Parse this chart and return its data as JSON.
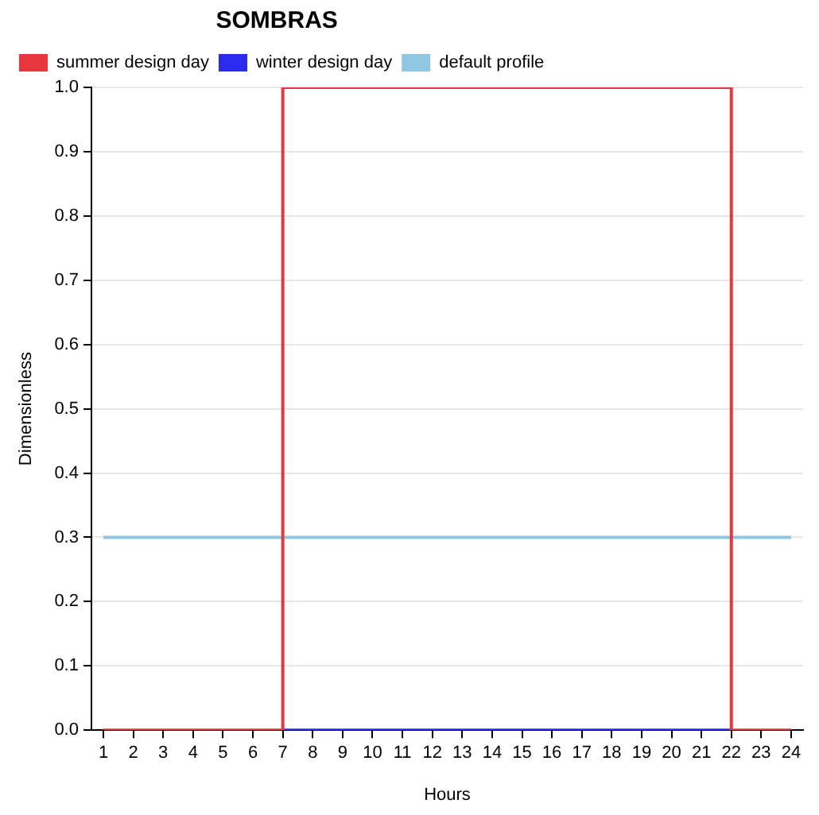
{
  "chart_data": {
    "type": "step",
    "legend_title": "SOMBRAS",
    "xlabel": "Hours",
    "ylabel": "Dimensionless",
    "x": [
      1,
      2,
      3,
      4,
      5,
      6,
      7,
      8,
      9,
      10,
      11,
      12,
      13,
      14,
      15,
      16,
      17,
      18,
      19,
      20,
      21,
      22,
      23,
      24
    ],
    "series": [
      {
        "name": "summer design day",
        "color": "#e8373c",
        "values": [
          0,
          0,
          0,
          0,
          0,
          0,
          1,
          1,
          1,
          1,
          1,
          1,
          1,
          1,
          1,
          1,
          1,
          1,
          1,
          1,
          1,
          0,
          0,
          0
        ]
      },
      {
        "name": "winter design day",
        "color": "#2b2bf0",
        "values": [
          null,
          null,
          null,
          null,
          null,
          null,
          0,
          0,
          0,
          0,
          0,
          0,
          0,
          0,
          0,
          0,
          0,
          0,
          0,
          0,
          0,
          0,
          null,
          null
        ]
      },
      {
        "name": "default profile",
        "color": "#8fc6e2",
        "values": [
          0.3,
          0.3,
          0.3,
          0.3,
          0.3,
          0.3,
          0.3,
          0.3,
          0.3,
          0.3,
          0.3,
          0.3,
          0.3,
          0.3,
          0.3,
          0.3,
          0.3,
          0.3,
          0.3,
          0.3,
          0.3,
          0.3,
          0.3,
          0.3
        ]
      }
    ],
    "xlim": [
      0.6,
      24.4
    ],
    "xticks": [
      1,
      2,
      3,
      4,
      5,
      6,
      7,
      8,
      9,
      10,
      11,
      12,
      13,
      14,
      15,
      16,
      17,
      18,
      19,
      20,
      21,
      22,
      23,
      24
    ],
    "ylim": [
      0,
      1
    ],
    "yticks": [
      {
        "value": 0,
        "label": "0.0"
      },
      0.1,
      0.2,
      0.3,
      0.4,
      0.5,
      0.6,
      0.7,
      0.8,
      0.9,
      {
        "value": 1,
        "label": "1.0"
      }
    ],
    "grid": "y",
    "legend": "top left",
    "marker": "none",
    "line_style": "solid"
  }
}
